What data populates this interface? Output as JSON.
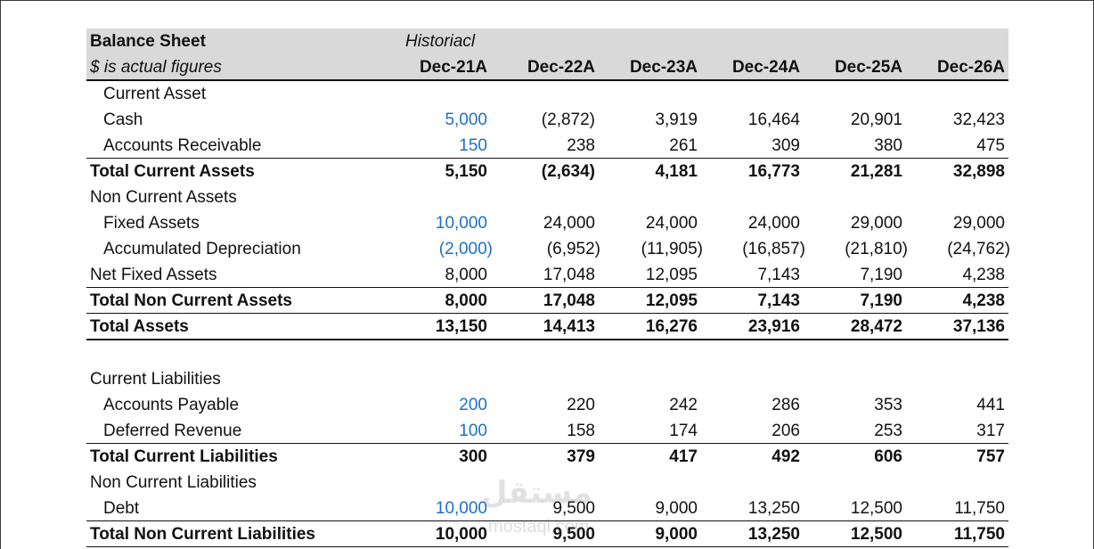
{
  "header": {
    "title": "Balance Sheet",
    "subtitle": "$ is actual figures",
    "historical_label": "Historiacl",
    "years": [
      "Dec-21A",
      "Dec-22A",
      "Dec-23A",
      "Dec-24A",
      "Dec-25A",
      "Dec-26A"
    ]
  },
  "rows": {
    "current_asset_header": "Current Asset",
    "cash": {
      "label": "Cash",
      "values": [
        "5,000",
        "(2,872)",
        "3,919",
        "16,464",
        "20,901",
        "32,423"
      ]
    },
    "ar": {
      "label": "Accounts Receivable",
      "values": [
        "150",
        "238",
        "261",
        "309",
        "380",
        "475"
      ]
    },
    "total_current_assets": {
      "label": "Total Current Assets",
      "values": [
        "5,150",
        "(2,634)",
        "4,181",
        "16,773",
        "21,281",
        "32,898"
      ]
    },
    "non_current_assets_header": "Non Current Assets",
    "fixed_assets": {
      "label": "Fixed Assets",
      "values": [
        "10,000",
        "24,000",
        "24,000",
        "24,000",
        "29,000",
        "29,000"
      ]
    },
    "accum_dep": {
      "label": "Accumulated Depreciation",
      "values": [
        "(2,000)",
        "(6,952)",
        "(11,905)",
        "(16,857)",
        "(21,810)",
        "(24,762)"
      ]
    },
    "net_fixed_assets": {
      "label": "Net Fixed Assets",
      "values": [
        "8,000",
        "17,048",
        "12,095",
        "7,143",
        "7,190",
        "4,238"
      ]
    },
    "total_non_current_assets": {
      "label": "Total Non Current Assets",
      "values": [
        "8,000",
        "17,048",
        "12,095",
        "7,143",
        "7,190",
        "4,238"
      ]
    },
    "total_assets": {
      "label": "Total Assets",
      "values": [
        "13,150",
        "14,413",
        "16,276",
        "23,916",
        "28,472",
        "37,136"
      ]
    },
    "current_liabilities_header": "Current Liabilities",
    "ap": {
      "label": "Accounts Payable",
      "values": [
        "200",
        "220",
        "242",
        "286",
        "353",
        "441"
      ]
    },
    "deferred_revenue": {
      "label": "Deferred Revenue",
      "values": [
        "100",
        "158",
        "174",
        "206",
        "253",
        "317"
      ]
    },
    "total_current_liabilities": {
      "label": "Total Current Liabilities",
      "values": [
        "300",
        "379",
        "417",
        "492",
        "606",
        "757"
      ]
    },
    "non_current_liabilities_header": "Non Current Liabilities",
    "debt": {
      "label": "Debt",
      "values": [
        "10,000",
        "9,500",
        "9,000",
        "13,250",
        "12,500",
        "11,750"
      ]
    },
    "total_non_current_liabilities": {
      "label": "Total Non Current Liabilities",
      "values": [
        "10,000",
        "9,500",
        "9,000",
        "13,250",
        "12,500",
        "11,750"
      ]
    }
  },
  "watermark": {
    "arabic": "مستقل",
    "latin": "mostaql.com"
  },
  "colors": {
    "input_blue": "#1f6fc5",
    "header_band": "#d9d9d9",
    "text": "#111111"
  }
}
